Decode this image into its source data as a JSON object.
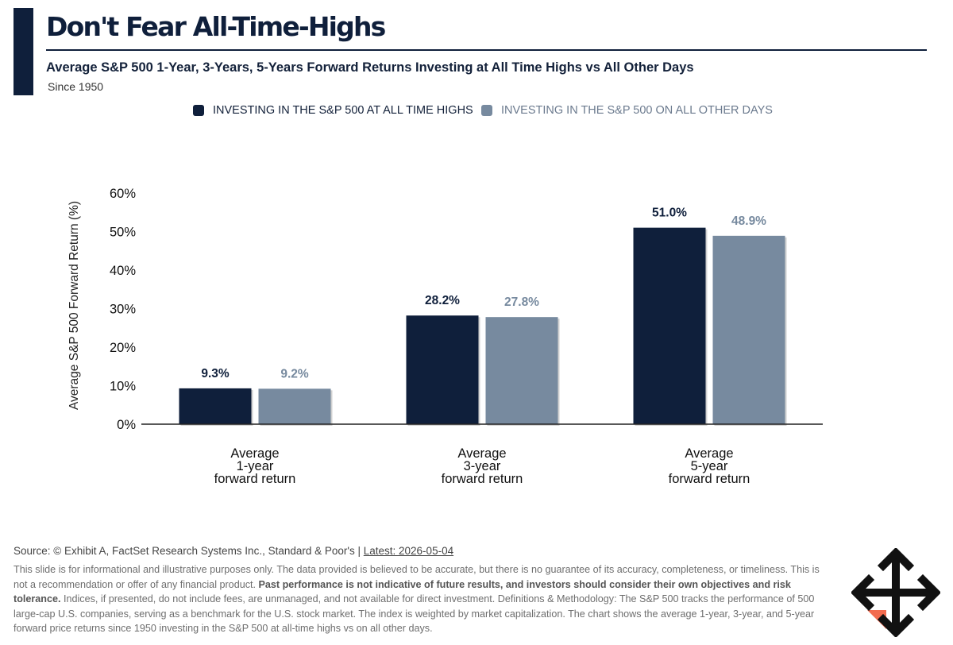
{
  "header": {
    "title": "Don't Fear All-Time-Highs",
    "subtitle": "Average S&P 500 1-Year, 3-Years, 5-Years Forward Returns Investing at All Time Highs vs All Other Days",
    "since": "Since 1950"
  },
  "legend": {
    "ath": "INVESTING IN THE S&P 500 AT ALL TIME HIGHS",
    "other": "INVESTING IN THE S&P 500 ON ALL OTHER DAYS"
  },
  "colors": {
    "ath": "#0f1f3b",
    "other": "#778a9f",
    "axis": "#222222"
  },
  "chart_data": {
    "type": "bar",
    "categories": [
      [
        "Average",
        "1-year",
        "forward return"
      ],
      [
        "Average",
        "3-year",
        "forward return"
      ],
      [
        "Average",
        "5-year",
        "forward return"
      ]
    ],
    "series": [
      {
        "name": "INVESTING IN THE S&P 500 AT ALL TIME HIGHS",
        "values": [
          9.3,
          28.2,
          51.0
        ],
        "labels": [
          "9.3%",
          "28.2%",
          "51.0%"
        ]
      },
      {
        "name": "INVESTING IN THE S&P 500 ON ALL OTHER DAYS",
        "values": [
          9.2,
          27.8,
          48.9
        ],
        "labels": [
          "9.2%",
          "27.8%",
          "48.9%"
        ]
      }
    ],
    "ylabel": "Average S&P 500 Forward Return (%)",
    "ylim": [
      0,
      60
    ],
    "yticks": [
      "0%",
      "10%",
      "20%",
      "30%",
      "40%",
      "50%",
      "60%"
    ],
    "grid": false,
    "legend_position": "top"
  },
  "footer": {
    "source": "Source: © Exhibit A, FactSet Research Systems Inc., Standard & Poor's |",
    "latest": "Latest: 2026-05-04",
    "disclaimer_1": "This slide is for informational and illustrative purposes only. The data provided is believed to be accurate, but there is no guarantee of its accuracy, completeness, or timeliness. This is not a recommendation or offer of any financial product.",
    "disclaimer_bold": "Past performance is not indicative of future results, and investors should consider their own objectives and risk tolerance.",
    "disclaimer_2": "Indices, if presented, do not include fees, are unmanaged, and not available for direct investment. Definitions & Methodology: The S&P 500 tracks the performance of 500 large-cap U.S. companies, serving as a benchmark for the U.S. stock market. The index is weighted by market capitalization. The chart shows the average 1-year, 3-year, and 5-year forward price returns since 1950 investing in the S&P 500 at all-time highs vs on all other days."
  },
  "logo": {
    "icon": "four-way-arrows-icon",
    "colors": [
      "#111111",
      "#f26b4f"
    ]
  }
}
